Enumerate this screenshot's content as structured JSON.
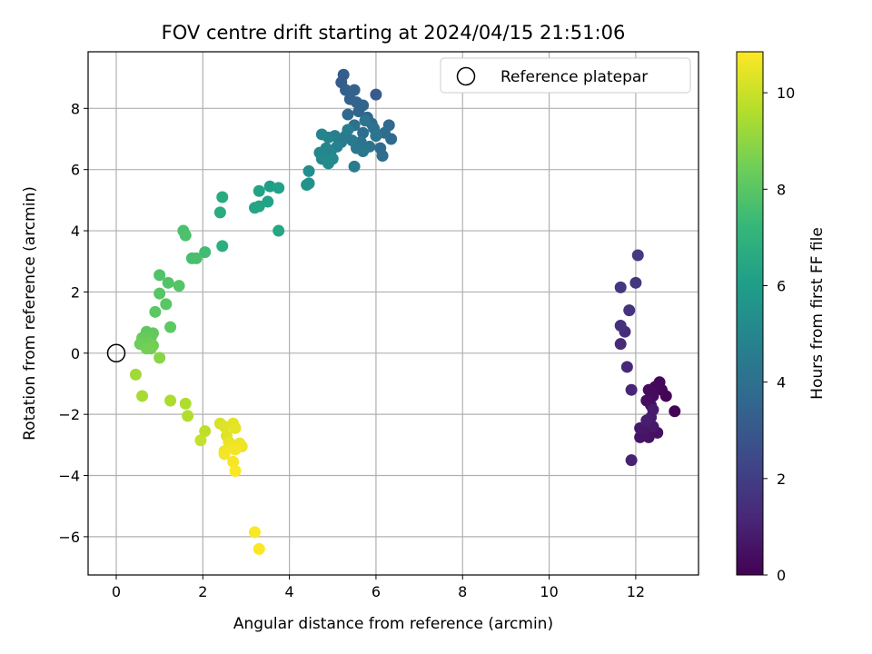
{
  "chart_data": {
    "type": "scatter",
    "title": "FOV centre drift starting at 2024/04/15 21:51:06",
    "xlabel": "Angular distance from reference (arcmin)",
    "ylabel": "Rotation from reference (arcmin)",
    "xlim": [
      -0.65,
      13.45
    ],
    "ylim": [
      -7.25,
      9.85
    ],
    "xticks": [
      0,
      2,
      4,
      6,
      8,
      10,
      12
    ],
    "yticks": [
      -6,
      -4,
      -2,
      0,
      2,
      4,
      6,
      8
    ],
    "grid": true,
    "legend": {
      "placement": "top-right",
      "entries": [
        "Reference platepar"
      ]
    },
    "reference_point": {
      "x": 0,
      "y": 0
    },
    "colorbar": {
      "label": "Hours from first FF file",
      "colormap": "viridis",
      "range": [
        0,
        10.85
      ],
      "ticks": [
        0,
        2,
        4,
        6,
        8,
        10
      ]
    },
    "colormap_stops": [
      "#440154",
      "#482878",
      "#3e4989",
      "#31688e",
      "#26828e",
      "#1f9e89",
      "#35b779",
      "#6ece58",
      "#b5de2b",
      "#fde725"
    ],
    "points": [
      {
        "x": 12.9,
        "y": -1.9,
        "hours": 0.05
      },
      {
        "x": 12.7,
        "y": -1.4,
        "hours": 0.1
      },
      {
        "x": 12.6,
        "y": -1.2,
        "hours": 0.15
      },
      {
        "x": 12.55,
        "y": -0.95,
        "hours": 0.2
      },
      {
        "x": 12.45,
        "y": -1.1,
        "hours": 0.25
      },
      {
        "x": 12.3,
        "y": -1.2,
        "hours": 0.3
      },
      {
        "x": 12.4,
        "y": -1.4,
        "hours": 0.35
      },
      {
        "x": 12.25,
        "y": -1.55,
        "hours": 0.4
      },
      {
        "x": 12.35,
        "y": -1.7,
        "hours": 0.45
      },
      {
        "x": 12.5,
        "y": -2.6,
        "hours": 0.5
      },
      {
        "x": 12.3,
        "y": -2.75,
        "hours": 0.55
      },
      {
        "x": 12.1,
        "y": -2.75,
        "hours": 0.6
      },
      {
        "x": 12.2,
        "y": -2.5,
        "hours": 0.65
      },
      {
        "x": 12.1,
        "y": -2.45,
        "hours": 0.7
      },
      {
        "x": 12.4,
        "y": -2.4,
        "hours": 0.75
      },
      {
        "x": 12.35,
        "y": -2.1,
        "hours": 0.8
      },
      {
        "x": 12.4,
        "y": -1.85,
        "hours": 0.85
      },
      {
        "x": 12.25,
        "y": -2.2,
        "hours": 0.9
      },
      {
        "x": 11.9,
        "y": -3.5,
        "hours": 1.0
      },
      {
        "x": 11.9,
        "y": -1.2,
        "hours": 1.1
      },
      {
        "x": 11.8,
        "y": -0.45,
        "hours": 1.2
      },
      {
        "x": 11.65,
        "y": 0.3,
        "hours": 1.3
      },
      {
        "x": 11.75,
        "y": 0.7,
        "hours": 1.4
      },
      {
        "x": 11.65,
        "y": 0.9,
        "hours": 1.5
      },
      {
        "x": 11.85,
        "y": 1.4,
        "hours": 1.6
      },
      {
        "x": 11.65,
        "y": 2.15,
        "hours": 1.7
      },
      {
        "x": 12.0,
        "y": 2.3,
        "hours": 1.8
      },
      {
        "x": 12.05,
        "y": 3.2,
        "hours": 1.9
      },
      {
        "x": 6.0,
        "y": 8.45,
        "hours": 3.1
      },
      {
        "x": 5.25,
        "y": 9.1,
        "hours": 3.2
      },
      {
        "x": 5.2,
        "y": 8.85,
        "hours": 3.2
      },
      {
        "x": 5.3,
        "y": 8.6,
        "hours": 3.3
      },
      {
        "x": 5.5,
        "y": 8.6,
        "hours": 3.35
      },
      {
        "x": 5.4,
        "y": 8.3,
        "hours": 3.4
      },
      {
        "x": 5.55,
        "y": 8.2,
        "hours": 3.45
      },
      {
        "x": 5.7,
        "y": 8.1,
        "hours": 3.5
      },
      {
        "x": 5.6,
        "y": 7.9,
        "hours": 3.5
      },
      {
        "x": 5.8,
        "y": 7.7,
        "hours": 3.55
      },
      {
        "x": 5.35,
        "y": 7.8,
        "hours": 3.6
      },
      {
        "x": 5.9,
        "y": 7.5,
        "hours": 3.65
      },
      {
        "x": 6.3,
        "y": 7.45,
        "hours": 3.7
      },
      {
        "x": 6.35,
        "y": 7.0,
        "hours": 3.75
      },
      {
        "x": 6.2,
        "y": 7.2,
        "hours": 3.8
      },
      {
        "x": 6.1,
        "y": 6.7,
        "hours": 3.85
      },
      {
        "x": 6.15,
        "y": 6.45,
        "hours": 3.9
      },
      {
        "x": 5.7,
        "y": 7.2,
        "hours": 3.95
      },
      {
        "x": 5.5,
        "y": 7.45,
        "hours": 4.0
      },
      {
        "x": 5.95,
        "y": 7.35,
        "hours": 4.05
      },
      {
        "x": 5.65,
        "y": 6.9,
        "hours": 4.1
      },
      {
        "x": 5.85,
        "y": 6.75,
        "hours": 4.15
      },
      {
        "x": 5.75,
        "y": 7.6,
        "hours": 4.2
      },
      {
        "x": 6.0,
        "y": 7.1,
        "hours": 4.25
      },
      {
        "x": 5.55,
        "y": 6.7,
        "hours": 4.3
      },
      {
        "x": 5.7,
        "y": 6.6,
        "hours": 4.35
      },
      {
        "x": 5.3,
        "y": 7.1,
        "hours": 4.4
      },
      {
        "x": 5.45,
        "y": 6.95,
        "hours": 4.45
      },
      {
        "x": 5.2,
        "y": 6.9,
        "hours": 4.5
      },
      {
        "x": 5.5,
        "y": 6.1,
        "hours": 4.55
      },
      {
        "x": 5.35,
        "y": 7.3,
        "hours": 4.6
      },
      {
        "x": 5.05,
        "y": 7.1,
        "hours": 4.7
      },
      {
        "x": 5.1,
        "y": 6.75,
        "hours": 4.8
      },
      {
        "x": 4.9,
        "y": 7.05,
        "hours": 4.85
      },
      {
        "x": 4.75,
        "y": 7.15,
        "hours": 4.9
      },
      {
        "x": 4.85,
        "y": 6.7,
        "hours": 4.95
      },
      {
        "x": 4.7,
        "y": 6.55,
        "hours": 5.0
      },
      {
        "x": 4.95,
        "y": 6.55,
        "hours": 5.05
      },
      {
        "x": 4.75,
        "y": 6.35,
        "hours": 5.1
      },
      {
        "x": 5.0,
        "y": 6.35,
        "hours": 5.15
      },
      {
        "x": 4.9,
        "y": 6.2,
        "hours": 5.2
      },
      {
        "x": 4.45,
        "y": 5.95,
        "hours": 5.4
      },
      {
        "x": 4.45,
        "y": 5.55,
        "hours": 5.5
      },
      {
        "x": 4.4,
        "y": 5.5,
        "hours": 5.55
      },
      {
        "x": 3.55,
        "y": 5.45,
        "hours": 6.1
      },
      {
        "x": 3.75,
        "y": 5.4,
        "hours": 6.15
      },
      {
        "x": 3.5,
        "y": 4.95,
        "hours": 6.2
      },
      {
        "x": 3.3,
        "y": 5.3,
        "hours": 6.25
      },
      {
        "x": 3.3,
        "y": 4.8,
        "hours": 6.3
      },
      {
        "x": 3.2,
        "y": 4.75,
        "hours": 6.35
      },
      {
        "x": 3.75,
        "y": 4.0,
        "hours": 6.4
      },
      {
        "x": 2.45,
        "y": 5.1,
        "hours": 6.6
      },
      {
        "x": 2.4,
        "y": 4.6,
        "hours": 6.65
      },
      {
        "x": 2.45,
        "y": 3.5,
        "hours": 6.8
      },
      {
        "x": 2.05,
        "y": 3.3,
        "hours": 7.5
      },
      {
        "x": 1.75,
        "y": 3.1,
        "hours": 7.6
      },
      {
        "x": 1.85,
        "y": 3.1,
        "hours": 7.65
      },
      {
        "x": 1.55,
        "y": 4.0,
        "hours": 7.7
      },
      {
        "x": 1.6,
        "y": 3.85,
        "hours": 7.75
      },
      {
        "x": 1.0,
        "y": 2.55,
        "hours": 7.8
      },
      {
        "x": 1.2,
        "y": 2.3,
        "hours": 7.85
      },
      {
        "x": 1.45,
        "y": 2.2,
        "hours": 7.9
      },
      {
        "x": 1.0,
        "y": 1.95,
        "hours": 7.95
      },
      {
        "x": 1.15,
        "y": 1.6,
        "hours": 8.0
      },
      {
        "x": 0.9,
        "y": 1.35,
        "hours": 8.05
      },
      {
        "x": 1.25,
        "y": 0.85,
        "hours": 8.1
      },
      {
        "x": 0.7,
        "y": 0.7,
        "hours": 8.15
      },
      {
        "x": 0.85,
        "y": 0.65,
        "hours": 8.2
      },
      {
        "x": 0.8,
        "y": 0.5,
        "hours": 8.25
      },
      {
        "x": 0.6,
        "y": 0.5,
        "hours": 8.3
      },
      {
        "x": 0.75,
        "y": 0.35,
        "hours": 8.35
      },
      {
        "x": 0.55,
        "y": 0.3,
        "hours": 8.4
      },
      {
        "x": 0.85,
        "y": 0.25,
        "hours": 8.45
      },
      {
        "x": 0.7,
        "y": 0.15,
        "hours": 8.5
      },
      {
        "x": 0.8,
        "y": 0.15,
        "hours": 8.55
      },
      {
        "x": 1.0,
        "y": -0.15,
        "hours": 8.9
      },
      {
        "x": 0.45,
        "y": -0.7,
        "hours": 9.3
      },
      {
        "x": 0.6,
        "y": -1.4,
        "hours": 9.4
      },
      {
        "x": 1.25,
        "y": -1.55,
        "hours": 9.5
      },
      {
        "x": 1.6,
        "y": -1.65,
        "hours": 9.55
      },
      {
        "x": 1.65,
        "y": -2.05,
        "hours": 9.6
      },
      {
        "x": 2.05,
        "y": -2.55,
        "hours": 9.8
      },
      {
        "x": 1.95,
        "y": -2.85,
        "hours": 9.9
      },
      {
        "x": 2.4,
        "y": -2.3,
        "hours": 10.2
      },
      {
        "x": 2.5,
        "y": -2.4,
        "hours": 10.3
      },
      {
        "x": 2.55,
        "y": -2.7,
        "hours": 10.35
      },
      {
        "x": 2.7,
        "y": -2.3,
        "hours": 10.4
      },
      {
        "x": 2.75,
        "y": -2.45,
        "hours": 10.45
      },
      {
        "x": 2.6,
        "y": -2.9,
        "hours": 10.5
      },
      {
        "x": 2.85,
        "y": -2.95,
        "hours": 10.55
      },
      {
        "x": 2.9,
        "y": -3.05,
        "hours": 10.6
      },
      {
        "x": 2.5,
        "y": -3.2,
        "hours": 10.6
      },
      {
        "x": 2.65,
        "y": -3.1,
        "hours": 10.65
      },
      {
        "x": 2.75,
        "y": -3.15,
        "hours": 10.7
      },
      {
        "x": 2.5,
        "y": -3.3,
        "hours": 10.7
      },
      {
        "x": 2.7,
        "y": -3.55,
        "hours": 10.75
      },
      {
        "x": 2.75,
        "y": -3.85,
        "hours": 10.8
      },
      {
        "x": 3.2,
        "y": -5.85,
        "hours": 10.8
      },
      {
        "x": 3.3,
        "y": -6.4,
        "hours": 10.85
      }
    ]
  }
}
